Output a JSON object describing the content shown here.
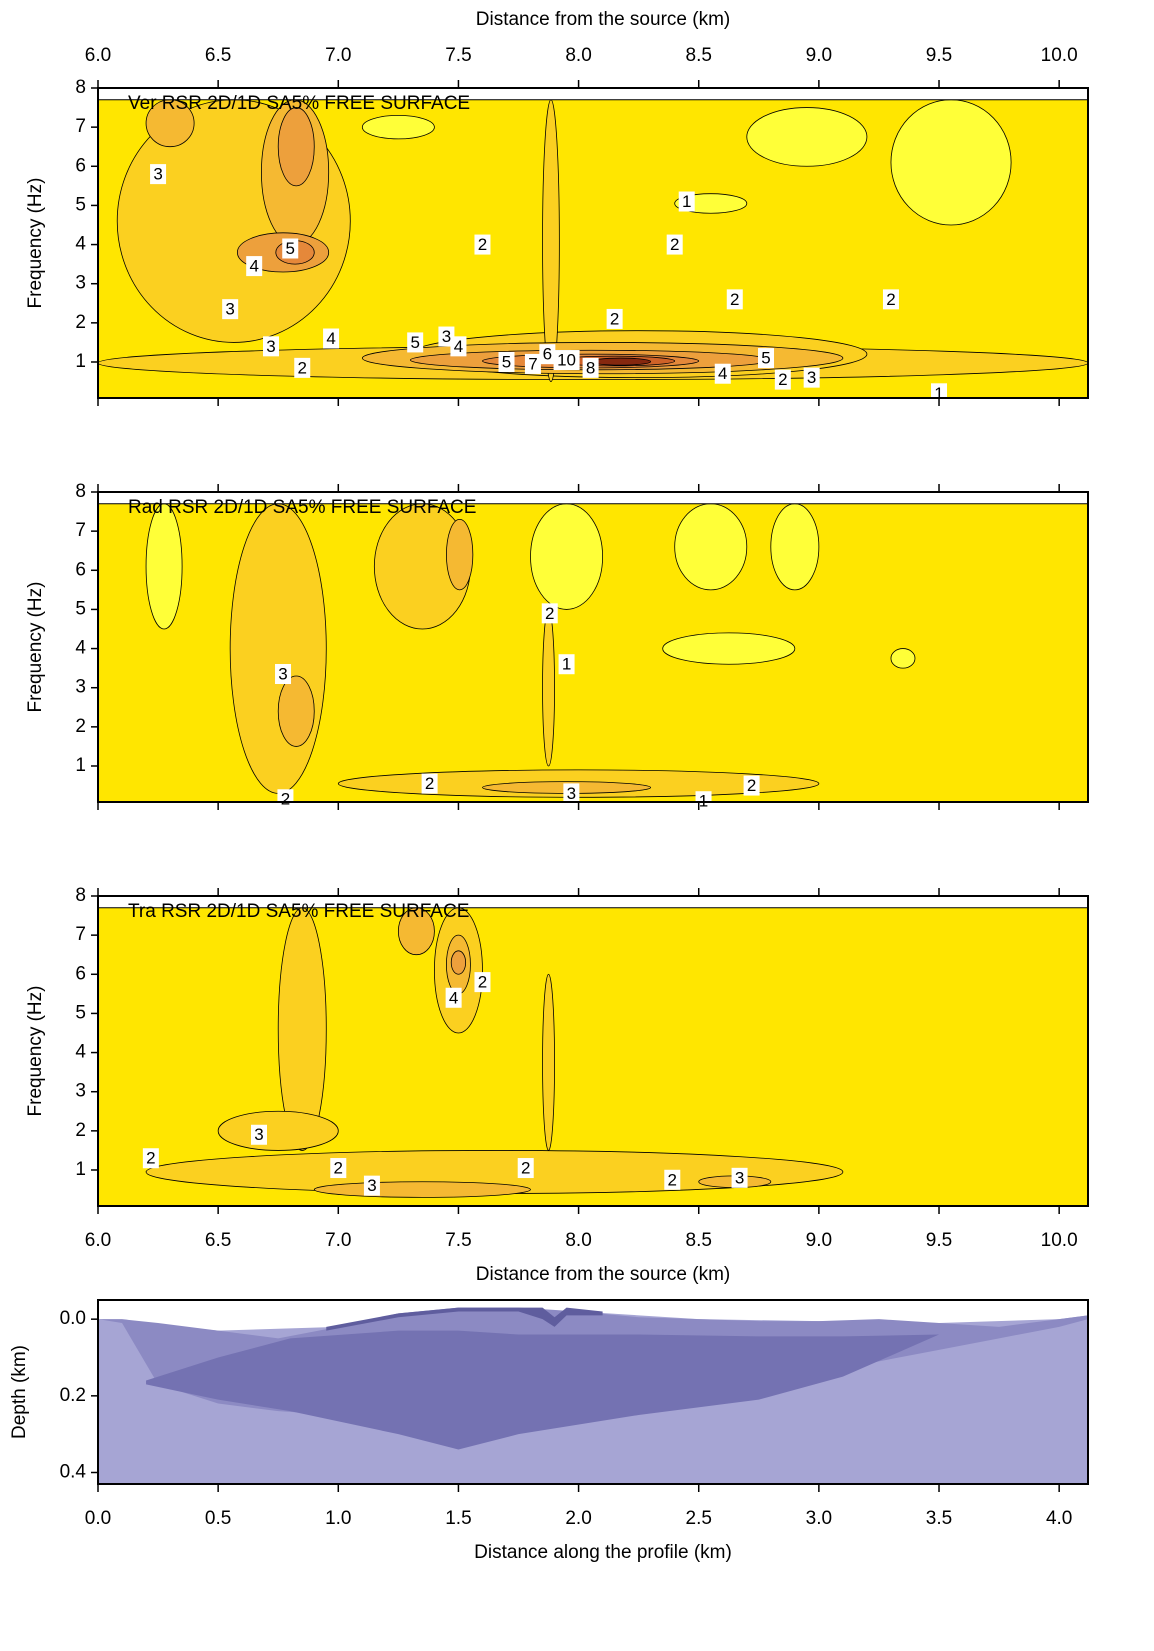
{
  "chart_data": [
    {
      "type": "contour",
      "title": "Ver RSR 2D/1D SA5% FREE SURFACE",
      "x_label": "Distance from the source (km)",
      "x_axis": "top",
      "y_label": "Frequency (Hz)",
      "xlim": [
        6.0,
        10.12
      ],
      "ylim": [
        0.08,
        8
      ],
      "field_ymax": 7.7,
      "xticks": [
        {
          "value": 6,
          "label": "6.0"
        },
        6.5,
        {
          "value": 7,
          "label": "7.0"
        },
        7.5,
        {
          "value": 8,
          "label": "8.0"
        },
        8.5,
        {
          "value": 9,
          "label": "9.0"
        },
        9.5,
        {
          "value": 10,
          "label": "10.0"
        }
      ],
      "yticks": [
        1,
        2,
        3,
        4,
        5,
        6,
        7,
        8
      ],
      "base_level": 1,
      "levels": [
        0,
        1,
        2,
        3,
        4,
        5,
        7,
        10
      ],
      "level_colors": [
        "#ffff38",
        "#ffe600",
        "#fbd020",
        "#f5b932",
        "#eda03c",
        "#e5883a",
        "#cf6228",
        "#86280f"
      ],
      "regions": [
        {
          "x": [
            6.08,
            7.05
          ],
          "y": [
            1.5,
            7.7
          ],
          "level": 2
        },
        {
          "x": [
            6.2,
            6.4
          ],
          "y": [
            6.5,
            7.7
          ],
          "level": 3
        },
        {
          "x": [
            6.68,
            6.96
          ],
          "y": [
            4.0,
            7.7
          ],
          "level": 3
        },
        {
          "x": [
            6.75,
            6.9
          ],
          "y": [
            5.5,
            7.5
          ],
          "level": 4
        },
        {
          "x": [
            6.58,
            6.96
          ],
          "y": [
            3.3,
            4.3
          ],
          "level": 4
        },
        {
          "x": [
            6.74,
            6.9
          ],
          "y": [
            3.5,
            4.1
          ],
          "level": 5
        },
        {
          "x": [
            6.0,
            10.12
          ],
          "y": [
            0.55,
            1.4
          ],
          "level": 2
        },
        {
          "x": [
            7.3,
            9.2
          ],
          "y": [
            0.6,
            1.8
          ],
          "level": 2
        },
        {
          "x": [
            7.85,
            7.92
          ],
          "y": [
            0.5,
            7.7
          ],
          "level": 2
        },
        {
          "x": [
            7.1,
            9.1
          ],
          "y": [
            0.7,
            1.5
          ],
          "level": 3
        },
        {
          "x": [
            7.3,
            8.8
          ],
          "y": [
            0.8,
            1.3
          ],
          "level": 4
        },
        {
          "x": [
            7.6,
            8.5
          ],
          "y": [
            0.85,
            1.2
          ],
          "level": 5
        },
        {
          "x": [
            7.9,
            8.4
          ],
          "y": [
            0.9,
            1.15
          ],
          "level": 7
        },
        {
          "x": [
            8.05,
            8.3
          ],
          "y": [
            0.92,
            1.1
          ],
          "level": 10
        },
        {
          "x": [
            8.4,
            8.7
          ],
          "y": [
            4.8,
            5.3
          ],
          "level": 0
        },
        {
          "x": [
            9.3,
            9.8
          ],
          "y": [
            4.5,
            7.7
          ],
          "level": 0
        },
        {
          "x": [
            7.1,
            7.4
          ],
          "y": [
            6.7,
            7.3
          ],
          "level": 0
        },
        {
          "x": [
            8.7,
            9.2
          ],
          "y": [
            6.0,
            7.5
          ],
          "level": 0
        }
      ],
      "labels": [
        {
          "x": 6.25,
          "y": 5.8,
          "value": 3
        },
        {
          "x": 6.8,
          "y": 3.9,
          "value": 5
        },
        {
          "x": 6.65,
          "y": 3.45,
          "value": 4
        },
        {
          "x": 6.55,
          "y": 2.35,
          "value": 3
        },
        {
          "x": 6.72,
          "y": 1.4,
          "value": 3
        },
        {
          "x": 6.85,
          "y": 0.85,
          "value": 2
        },
        {
          "x": 6.97,
          "y": 1.6,
          "value": 4
        },
        {
          "x": 7.32,
          "y": 1.5,
          "value": 5
        },
        {
          "x": 7.45,
          "y": 1.65,
          "value": 3
        },
        {
          "x": 7.5,
          "y": 1.4,
          "value": 4
        },
        {
          "x": 7.7,
          "y": 1.0,
          "value": 5
        },
        {
          "x": 7.81,
          "y": 0.95,
          "value": 7
        },
        {
          "x": 7.87,
          "y": 1.2,
          "value": 6
        },
        {
          "x": 7.95,
          "y": 1.05,
          "value": 10
        },
        {
          "x": 8.05,
          "y": 0.85,
          "value": 8
        },
        {
          "x": 7.6,
          "y": 4.0,
          "value": 2
        },
        {
          "x": 8.45,
          "y": 5.1,
          "value": 1
        },
        {
          "x": 8.4,
          "y": 4.0,
          "value": 2
        },
        {
          "x": 8.65,
          "y": 2.6,
          "value": 2
        },
        {
          "x": 8.15,
          "y": 2.1,
          "value": 2
        },
        {
          "x": 9.3,
          "y": 2.6,
          "value": 2
        },
        {
          "x": 8.78,
          "y": 1.1,
          "value": 5
        },
        {
          "x": 8.6,
          "y": 0.7,
          "value": 4
        },
        {
          "x": 8.85,
          "y": 0.55,
          "value": 2
        },
        {
          "x": 8.97,
          "y": 0.6,
          "value": 3
        },
        {
          "x": 9.5,
          "y": 0.2,
          "value": 1
        }
      ]
    },
    {
      "type": "contour",
      "title": "Rad RSR 2D/1D SA5% FREE SURFACE",
      "y_label": "Frequency (Hz)",
      "xlim": [
        6.0,
        10.12
      ],
      "ylim": [
        0.08,
        8
      ],
      "field_ymax": 7.7,
      "xticks": [
        6,
        6.5,
        7,
        7.5,
        8,
        8.5,
        9,
        9.5,
        10
      ],
      "yticks": [
        1,
        2,
        3,
        4,
        5,
        6,
        7,
        8
      ],
      "base_level": 1,
      "levels": [
        0,
        1,
        2,
        3
      ],
      "level_colors": [
        "#ffff38",
        "#ffe600",
        "#fbd020",
        "#f5b932"
      ],
      "regions": [
        {
          "x": [
            6.55,
            6.95
          ],
          "y": [
            0.3,
            7.7
          ],
          "level": 2
        },
        {
          "x": [
            6.75,
            6.9
          ],
          "y": [
            1.5,
            3.3
          ],
          "level": 3
        },
        {
          "x": [
            7.15,
            7.55
          ],
          "y": [
            4.5,
            7.7
          ],
          "level": 2
        },
        {
          "x": [
            7.45,
            7.56
          ],
          "y": [
            5.5,
            7.3
          ],
          "level": 3
        },
        {
          "x": [
            7.0,
            9.0
          ],
          "y": [
            0.2,
            0.9
          ],
          "level": 2
        },
        {
          "x": [
            7.6,
            8.3
          ],
          "y": [
            0.3,
            0.6
          ],
          "level": 3
        },
        {
          "x": [
            7.85,
            7.9
          ],
          "y": [
            1.0,
            5.0
          ],
          "level": 2
        },
        {
          "x": [
            6.2,
            6.35
          ],
          "y": [
            4.5,
            7.7
          ],
          "level": 0
        },
        {
          "x": [
            8.35,
            8.9
          ],
          "y": [
            3.6,
            4.4
          ],
          "level": 0
        },
        {
          "x": [
            8.4,
            8.7
          ],
          "y": [
            5.5,
            7.7
          ],
          "level": 0
        },
        {
          "x": [
            8.8,
            9.0
          ],
          "y": [
            5.5,
            7.7
          ],
          "level": 0
        },
        {
          "x": [
            7.8,
            8.1
          ],
          "y": [
            5.0,
            7.7
          ],
          "level": 0
        },
        {
          "x": [
            9.3,
            9.4
          ],
          "y": [
            3.5,
            4.0
          ],
          "level": 0
        }
      ],
      "labels": [
        {
          "x": 7.88,
          "y": 4.9,
          "value": 2
        },
        {
          "x": 7.95,
          "y": 3.6,
          "value": 1
        },
        {
          "x": 6.77,
          "y": 3.35,
          "value": 3
        },
        {
          "x": 7.38,
          "y": 0.55,
          "value": 2
        },
        {
          "x": 7.97,
          "y": 0.3,
          "value": 3
        },
        {
          "x": 8.72,
          "y": 0.5,
          "value": 2
        },
        {
          "x": 6.78,
          "y": 0.15,
          "value": 2
        },
        {
          "x": 8.52,
          "y": 0.1,
          "value": 1
        }
      ]
    },
    {
      "type": "contour",
      "title": "Tra RSR 2D/1D SA5% FREE SURFACE",
      "x_label": "Distance from the source (km)",
      "x_axis": "bottom",
      "y_label": "Frequency (Hz)",
      "xlim": [
        6.0,
        10.12
      ],
      "ylim": [
        0.08,
        8
      ],
      "field_ymax": 7.7,
      "xticks": [
        {
          "value": 6,
          "label": "6.0"
        },
        6.5,
        {
          "value": 7,
          "label": "7.0"
        },
        7.5,
        {
          "value": 8,
          "label": "8.0"
        },
        8.5,
        {
          "value": 9,
          "label": "9.0"
        },
        9.5,
        {
          "value": 10,
          "label": "10.0"
        }
      ],
      "yticks": [
        1,
        2,
        3,
        4,
        5,
        6,
        7,
        8
      ],
      "base_level": 1,
      "levels": [
        1,
        2,
        3,
        4
      ],
      "level_colors": [
        "#ffe600",
        "#fbd020",
        "#f5b932",
        "#eda03c"
      ],
      "regions": [
        {
          "x": [
            6.75,
            6.95
          ],
          "y": [
            1.5,
            7.7
          ],
          "level": 2
        },
        {
          "x": [
            6.5,
            7.0
          ],
          "y": [
            1.5,
            2.5
          ],
          "level": 2
        },
        {
          "x": [
            6.2,
            9.1
          ],
          "y": [
            0.4,
            1.5
          ],
          "level": 2
        },
        {
          "x": [
            6.9,
            7.8
          ],
          "y": [
            0.3,
            0.7
          ],
          "level": 3
        },
        {
          "x": [
            8.5,
            8.8
          ],
          "y": [
            0.55,
            0.85
          ],
          "level": 3
        },
        {
          "x": [
            7.4,
            7.6
          ],
          "y": [
            4.5,
            7.7
          ],
          "level": 2
        },
        {
          "x": [
            7.45,
            7.55
          ],
          "y": [
            5.5,
            7.0
          ],
          "level": 3
        },
        {
          "x": [
            7.25,
            7.4
          ],
          "y": [
            6.5,
            7.7
          ],
          "level": 3
        },
        {
          "x": [
            7.47,
            7.53
          ],
          "y": [
            6.0,
            6.6
          ],
          "level": 4
        },
        {
          "x": [
            7.85,
            7.9
          ],
          "y": [
            1.5,
            6.0
          ],
          "level": 2
        }
      ],
      "labels": [
        {
          "x": 7.6,
          "y": 5.8,
          "value": 2
        },
        {
          "x": 7.48,
          "y": 5.4,
          "value": 4
        },
        {
          "x": 6.67,
          "y": 1.9,
          "value": 3
        },
        {
          "x": 6.22,
          "y": 1.3,
          "value": 2
        },
        {
          "x": 7.0,
          "y": 1.05,
          "value": 2
        },
        {
          "x": 7.14,
          "y": 0.6,
          "value": 3
        },
        {
          "x": 7.78,
          "y": 1.05,
          "value": 2
        },
        {
          "x": 8.39,
          "y": 0.75,
          "value": 2
        },
        {
          "x": 8.67,
          "y": 0.8,
          "value": 3
        }
      ]
    },
    {
      "type": "section",
      "x_label": "Distance along the profile (km)",
      "x_axis": "bottom",
      "y_label": "Depth (km)",
      "xlim": [
        0,
        4.12
      ],
      "ylim": [
        -0.05,
        0.43
      ],
      "y_inverted": true,
      "xticks": [
        {
          "value": 0,
          "label": "0.0"
        },
        0.5,
        {
          "value": 1,
          "label": "1.0"
        },
        1.5,
        {
          "value": 2,
          "label": "2.0"
        },
        2.5,
        {
          "value": 3,
          "label": "3.0"
        },
        3.5,
        {
          "value": 4,
          "label": "4.0"
        }
      ],
      "yticks": [
        {
          "value": 0,
          "label": "0.0"
        },
        0.2,
        0.4
      ],
      "layers": [
        {
          "color": "#a6a5d4",
          "x": [
            0,
            0.5,
            1,
            1.5,
            2,
            2.5,
            3,
            3.5,
            4,
            4.12
          ],
          "top": [
            0,
            0.03,
            0.02,
            -0.03,
            -0.02,
            0,
            0.005,
            0.01,
            0,
            -0.01
          ]
        },
        {
          "color": "#8c8ac3",
          "x": [
            0,
            0.1,
            0.25,
            0.5,
            0.75,
            1,
            1.25,
            1.5,
            1.75,
            2,
            2.25,
            2.5,
            2.75,
            3,
            3.25,
            3.5,
            3.75,
            4,
            4.12
          ],
          "top": [
            0,
            0,
            0.01,
            0.03,
            0.05,
            0.02,
            -0.015,
            -0.03,
            -0.03,
            -0.02,
            -0.005,
            0,
            0.005,
            0.005,
            0,
            0.01,
            0.02,
            0,
            -0.01
          ],
          "bottom": [
            0,
            0.01,
            0.17,
            0.22,
            0.24,
            0.25,
            0.26,
            0.27,
            0.26,
            0.25,
            0.22,
            0.19,
            0.16,
            0.14,
            0.11,
            0.08,
            0.05,
            0.02,
            0
          ]
        },
        {
          "color": "#7472b2",
          "x": [
            0.2,
            0.5,
            0.8,
            1.25,
            1.5,
            1.75,
            2.25,
            2.75,
            3.1,
            3.5
          ],
          "top": [
            0.16,
            0.1,
            0.05,
            0.03,
            0.03,
            0.04,
            0.04,
            0.045,
            0.045,
            0.04
          ],
          "bottom": [
            0.17,
            0.21,
            0.24,
            0.3,
            0.34,
            0.3,
            0.25,
            0.21,
            0.15,
            0.04
          ]
        },
        {
          "color": "#5f5d9e",
          "x": [
            0.95,
            1.25,
            1.5,
            1.75,
            1.85,
            1.9,
            1.95,
            2.1
          ],
          "top": [
            0.02,
            -0.015,
            -0.03,
            -0.03,
            -0.03,
            -0.005,
            -0.03,
            -0.02
          ],
          "bottom": [
            0.03,
            -0.005,
            -0.02,
            -0.02,
            0,
            0.02,
            -0.01,
            -0.01
          ]
        }
      ]
    }
  ]
}
